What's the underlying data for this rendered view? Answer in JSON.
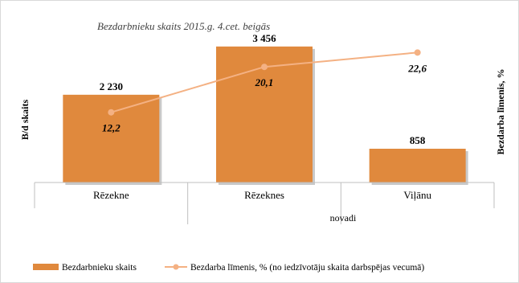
{
  "chart_data": {
    "type": "bar",
    "title": "Bezdarbnieku skaits 2015.g. 4.cet. beigās",
    "categories": [
      "Rēzekne",
      "Rēzeknes",
      "Viļānu"
    ],
    "xlabel": "novadi",
    "ylabel_left": "B/d skaits",
    "ylabel_right": "Bezdarba līmenis, %",
    "series": [
      {
        "name": "Bezdarbnieku skaits",
        "kind": "bar",
        "axis": "left",
        "values": [
          2230,
          3456,
          858
        ],
        "labels": [
          "2 230",
          "3 456",
          "858"
        ],
        "color": "#e0893d"
      },
      {
        "name": "Bezdarba līmenis, % (no iedzīvotāju skaita darbspējas vecumā)",
        "kind": "line",
        "axis": "right",
        "values": [
          12.2,
          20.1,
          22.6
        ],
        "labels": [
          "12,2",
          "20,1",
          "22,6"
        ],
        "color": "#f4b183"
      }
    ],
    "ylim_left": [
      0,
      3800
    ],
    "ylim_right": [
      0,
      26
    ],
    "grid": false,
    "legend_position": "bottom"
  }
}
